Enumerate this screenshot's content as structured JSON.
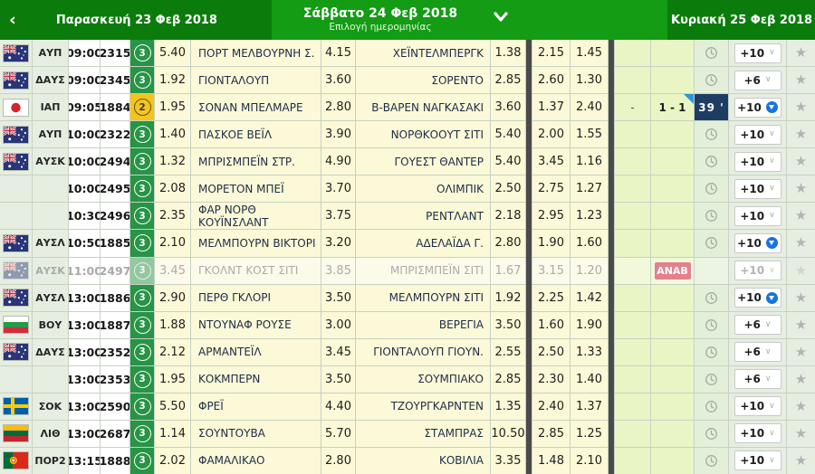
{
  "header": {
    "prev_day": "Παρασκευή 23 Φεβ 2018",
    "current_day": "Σάββατο 24 Φεβ 2018",
    "date_picker_label": "Επιλογή ημερομηνίας",
    "next_day": "Κυριακή 25 Φεβ 2018",
    "prev_arrow": "‹",
    "next_arrow": "›"
  },
  "labels": {
    "postponed_badge": "ΑΝΑΒ"
  },
  "colors": {
    "header_dark_green": "#0b7c0b",
    "header_bright_green": "#149c14",
    "badge_green": "#279447",
    "badge_yellow": "#f4c41c",
    "odds_cell_yellow": "#fbf9d7",
    "live_minute_navy": "#1d3d63",
    "postponed_pink": "#e5808e",
    "live_blue": "#1973dd",
    "score_corner_blue": "#2d96dc"
  },
  "rows": [
    {
      "flag": "australia",
      "league": "ΑΥΠ",
      "time": "09:00",
      "code": "2315",
      "markets": "3",
      "badge_color": "green",
      "odd_1": "5.40",
      "home": "ΠΟΡΤ ΜΕΛΒΟΥΡΝΗ Σ.",
      "odd_x": "4.15",
      "away": "ΧΕΪΝΤΕΛΜΠΕΡΓΚ",
      "odd_2": "1.38",
      "over": "2.15",
      "under": "1.45",
      "half": "",
      "score": "",
      "minute": "",
      "clock": true,
      "live": false,
      "postponed": false,
      "more": "+10"
    },
    {
      "flag": "australia",
      "league": "ΔΑΥΣ",
      "time": "09:00",
      "code": "2345",
      "markets": "3",
      "badge_color": "green",
      "odd_1": "1.92",
      "home": "ΓΙΟΝΤΑΛΟΥΠ",
      "odd_x": "3.60",
      "away": "ΣΟΡΕΝΤΟ",
      "odd_2": "2.85",
      "over": "2.60",
      "under": "1.30",
      "half": "",
      "score": "",
      "minute": "",
      "clock": true,
      "live": false,
      "postponed": false,
      "more": "+6"
    },
    {
      "flag": "japan",
      "league": "ΙΑΠ",
      "time": "09:05",
      "code": "1884",
      "markets": "2",
      "badge_color": "yellow",
      "odd_1": "1.95",
      "home": "ΣΟΝΑΝ ΜΠΕΛΜΑΡΕ",
      "odd_x": "2.80",
      "away": "Β-ΒΑΡΕΝ ΝΑΓΚΑΣΑΚΙ",
      "odd_2": "3.60",
      "over": "1.37",
      "under": "2.40",
      "half": "-",
      "score": "1 - 1",
      "minute": "39 '",
      "clock": false,
      "live": true,
      "postponed": false,
      "more": "+10"
    },
    {
      "flag": "australia",
      "league": "ΑΥΠ",
      "time": "10:00",
      "code": "2322",
      "markets": "3",
      "badge_color": "green",
      "odd_1": "1.40",
      "home": "ΠΑΣΚΟΕ ΒΕΪΛ",
      "odd_x": "3.90",
      "away": "ΝΟΡΘΚΟΟΥΤ ΣΙΤΙ",
      "odd_2": "5.40",
      "over": "2.00",
      "under": "1.55",
      "half": "",
      "score": "",
      "minute": "",
      "clock": true,
      "live": false,
      "postponed": false,
      "more": "+10"
    },
    {
      "flag": "australia",
      "league": "ΑΥΣΚ",
      "time": "10:00",
      "code": "2494",
      "markets": "3",
      "badge_color": "green",
      "odd_1": "1.32",
      "home": "ΜΠΡΙΣΜΠΕΪΝ ΣΤΡ.",
      "odd_x": "4.90",
      "away": "ΓΟΥΕΣΤ ΘΑΝΤΕΡ",
      "odd_2": "5.40",
      "over": "3.45",
      "under": "1.16",
      "half": "",
      "score": "",
      "minute": "",
      "clock": true,
      "live": false,
      "postponed": false,
      "more": "+10"
    },
    {
      "flag": null,
      "league": "",
      "time": "10:00",
      "code": "2495",
      "markets": "3",
      "badge_color": "green",
      "odd_1": "2.08",
      "home": "ΜΟΡΕΤΟΝ ΜΠΕΪ",
      "odd_x": "3.70",
      "away": "ΟΛΙΜΠΙΚ",
      "odd_2": "2.50",
      "over": "2.75",
      "under": "1.27",
      "half": "",
      "score": "",
      "minute": "",
      "clock": true,
      "live": false,
      "postponed": false,
      "more": "+10"
    },
    {
      "flag": null,
      "league": "",
      "time": "10:30",
      "code": "2496",
      "markets": "3",
      "badge_color": "green",
      "odd_1": "2.35",
      "home": "ΦΑΡ ΝΟΡΘ ΚΟΥΪΝΣΛΑΝΤ",
      "odd_x": "3.75",
      "away": "ΡΕΝΤΛΑΝΤ",
      "odd_2": "2.18",
      "over": "2.95",
      "under": "1.23",
      "half": "",
      "score": "",
      "minute": "",
      "clock": true,
      "live": false,
      "postponed": false,
      "more": "+10"
    },
    {
      "flag": "australia",
      "league": "ΑΥΣΛ",
      "time": "10:50",
      "code": "1885",
      "markets": "3",
      "badge_color": "green",
      "odd_1": "2.10",
      "home": "ΜΕΛΜΠΟΥΡΝ ΒΙΚΤΟΡΙ",
      "odd_x": "3.20",
      "away": "ΑΔΕΛΑΪΔΑ Γ.",
      "odd_2": "2.80",
      "over": "1.90",
      "under": "1.60",
      "half": "",
      "score": "",
      "minute": "",
      "clock": true,
      "live": true,
      "postponed": false,
      "more": "+10"
    },
    {
      "flag": "australia",
      "league": "ΑΥΣΚ",
      "time": "11:00",
      "code": "2497",
      "markets": "3",
      "badge_color": "green",
      "odd_1": "3.45",
      "home": "ΓΚΟΛΝΤ ΚΟΣΤ ΣΙΤΙ",
      "odd_x": "3.85",
      "away": "ΜΠΡΙΣΜΠΕΪΝ ΣΙΤΙ",
      "odd_2": "1.67",
      "over": "3.15",
      "under": "1.20",
      "half": "",
      "score": "",
      "minute": "",
      "clock": false,
      "live": false,
      "postponed": true,
      "more": "+10"
    },
    {
      "flag": "australia",
      "league": "ΑΥΣΛ",
      "time": "13:00",
      "code": "1886",
      "markets": "3",
      "badge_color": "green",
      "odd_1": "2.90",
      "home": "ΠΕΡΘ ΓΚΛΟΡΙ",
      "odd_x": "3.50",
      "away": "ΜΕΛΜΠΟΥΡΝ ΣΙΤΙ",
      "odd_2": "1.92",
      "over": "2.25",
      "under": "1.42",
      "half": "",
      "score": "",
      "minute": "",
      "clock": true,
      "live": true,
      "postponed": false,
      "more": "+10"
    },
    {
      "flag": "bulgaria",
      "league": "ΒΟΥ",
      "time": "13:00",
      "code": "1887",
      "markets": "3",
      "badge_color": "green",
      "odd_1": "1.88",
      "home": "ΝΤΟΥΝΑΦ ΡΟΥΣΕ",
      "odd_x": "3.00",
      "away": "ΒΕΡΕΓΙΑ",
      "odd_2": "3.50",
      "over": "1.60",
      "under": "1.90",
      "half": "",
      "score": "",
      "minute": "",
      "clock": true,
      "live": false,
      "postponed": false,
      "more": "+6"
    },
    {
      "flag": "australia",
      "league": "ΔΑΥΣ",
      "time": "13:00",
      "code": "2352",
      "markets": "3",
      "badge_color": "green",
      "odd_1": "2.12",
      "home": "ΑΡΜΑΝΤΕΪΛ",
      "odd_x": "3.45",
      "away": "ΓΙΟΝΤΑΛΟΥΠ ΓΙΟΥΝ.",
      "odd_2": "2.55",
      "over": "2.50",
      "under": "1.33",
      "half": "",
      "score": "",
      "minute": "",
      "clock": true,
      "live": false,
      "postponed": false,
      "more": "+6"
    },
    {
      "flag": null,
      "league": "",
      "time": "13:00",
      "code": "2353",
      "markets": "3",
      "badge_color": "green",
      "odd_1": "1.95",
      "home": "ΚΟΚΜΠΕΡΝ",
      "odd_x": "3.50",
      "away": "ΣΟΥΜΠΙΑΚΟ",
      "odd_2": "2.85",
      "over": "2.30",
      "under": "1.40",
      "half": "",
      "score": "",
      "minute": "",
      "clock": true,
      "live": false,
      "postponed": false,
      "more": "+6"
    },
    {
      "flag": "sweden",
      "league": "ΣΟΚ",
      "time": "13:00",
      "code": "2590",
      "markets": "3",
      "badge_color": "green",
      "odd_1": "5.50",
      "home": "ΦΡΕΪ",
      "odd_x": "4.40",
      "away": "ΤΖΟΥΡΓΚΑΡΝΤΕΝ",
      "odd_2": "1.35",
      "over": "2.40",
      "under": "1.37",
      "half": "",
      "score": "",
      "minute": "",
      "clock": true,
      "live": false,
      "postponed": false,
      "more": "+10"
    },
    {
      "flag": "lithuania",
      "league": "ΛΙΘ",
      "time": "13:00",
      "code": "2687",
      "markets": "3",
      "badge_color": "green",
      "odd_1": "1.14",
      "home": "ΣΟΥΝΤΟΥΒΑ",
      "odd_x": "5.70",
      "away": "ΣΤΑΜΠΡΑΣ",
      "odd_2": "10.50",
      "over": "2.85",
      "under": "1.25",
      "half": "",
      "score": "",
      "minute": "",
      "clock": true,
      "live": false,
      "postponed": false,
      "more": "+10"
    },
    {
      "flag": "portugal",
      "league": "ΠΟΡ2",
      "time": "13:15",
      "code": "1888",
      "markets": "3",
      "badge_color": "green",
      "odd_1": "2.02",
      "home": "ΦΑΜΑΛΙΚΑΟ",
      "odd_x": "2.80",
      "away": "ΚΟΒΙΛΙΑ",
      "odd_2": "3.35",
      "over": "1.48",
      "under": "2.10",
      "half": "",
      "score": "",
      "minute": "",
      "clock": true,
      "live": false,
      "postponed": false,
      "more": "+10"
    }
  ]
}
